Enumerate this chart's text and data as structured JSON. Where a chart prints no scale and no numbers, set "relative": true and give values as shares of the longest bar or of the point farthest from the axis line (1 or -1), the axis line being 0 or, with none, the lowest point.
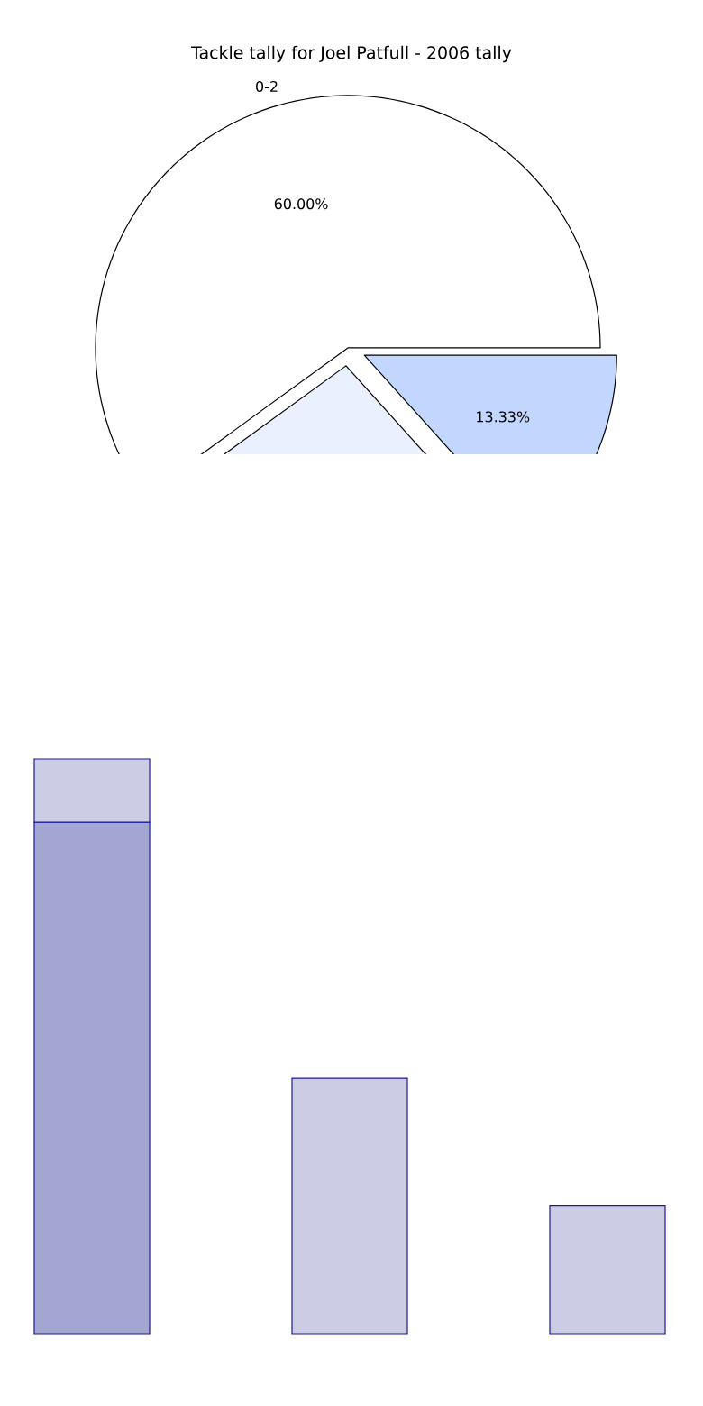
{
  "chart_data": [
    {
      "type": "pie",
      "title": "Tackle tally for Joel Patfull - 2006 tally",
      "categories": [
        "0-2",
        null,
        null
      ],
      "values": [
        60,
        26.67,
        13.33
      ],
      "colors": [
        "#ffffff",
        "#eaf0fe",
        "#c3d7fe"
      ],
      "value_labels": [
        "60.00%",
        null,
        "13.33%"
      ]
    },
    {
      "type": "bar",
      "relative": true,
      "stacked": true,
      "categories": [
        null,
        null,
        null
      ],
      "series": [
        {
          "color": "#a3a6d1",
          "values": [
            0.89,
            null,
            null
          ]
        },
        {
          "color": "#cccde4",
          "values": [
            0.11,
            0.445,
            0.223
          ]
        }
      ]
    }
  ]
}
